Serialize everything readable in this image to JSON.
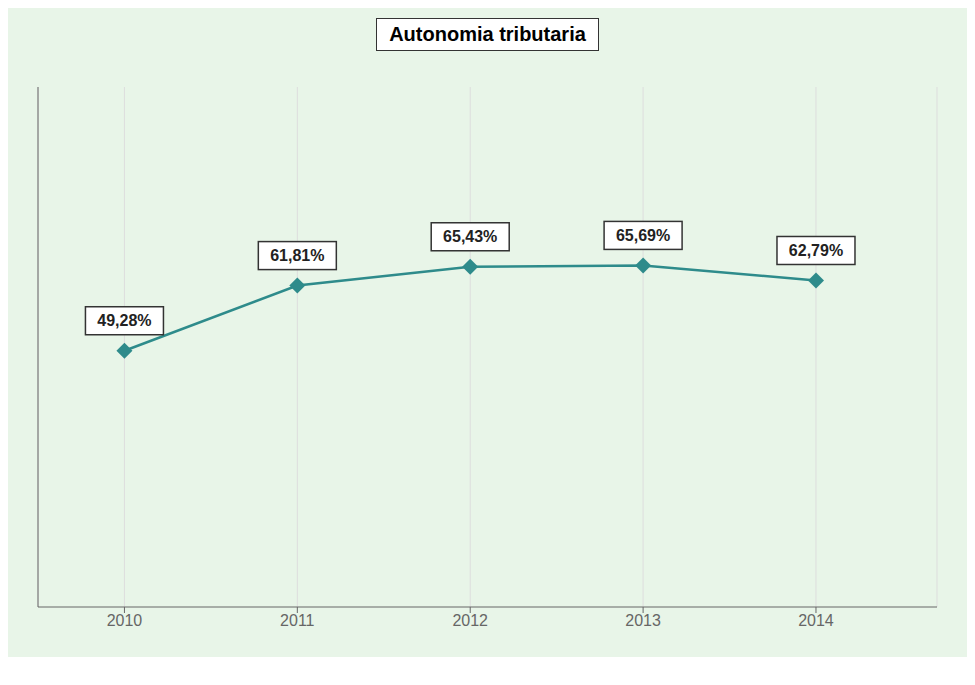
{
  "chart_data": {
    "type": "line",
    "title": "Autonomia tributaria",
    "x": [
      2010,
      2011,
      2012,
      2013,
      2014
    ],
    "values": [
      49.28,
      61.81,
      65.43,
      65.69,
      62.79
    ],
    "value_labels": [
      "49,28%",
      "61,81%",
      "65,43%",
      "65,69%",
      "62,79%"
    ],
    "data_labels": true,
    "color": "#2e8b8b",
    "marker": "diamond",
    "xlim": [
      2009.5,
      2014.7
    ],
    "xticks": [
      2010,
      2011,
      2012,
      2013,
      2014
    ],
    "ylim": [
      0,
      100
    ],
    "grid": true,
    "tick_labels": "x"
  }
}
